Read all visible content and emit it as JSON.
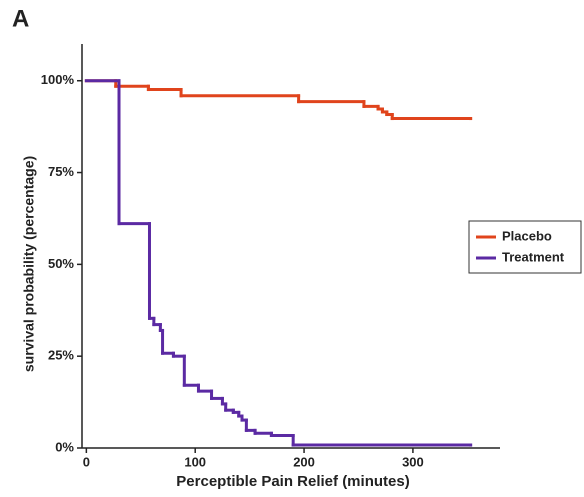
{
  "chart_data": {
    "type": "step",
    "panel_label": "A",
    "xlabel": "Perceptible Pain Relief  (minutes)",
    "ylabel": "survival probability (percentage)",
    "xlim": [
      -4,
      380
    ],
    "xticks": [
      0,
      100,
      200,
      300
    ],
    "ylim": [
      0,
      110
    ],
    "yticks": [
      {
        "value": 0,
        "label": "0%"
      },
      {
        "value": 25,
        "label": "25%"
      },
      {
        "value": 50,
        "label": "50%"
      },
      {
        "value": 75,
        "label": "75%"
      },
      {
        "value": 100,
        "label": "100%"
      }
    ],
    "legend": "right",
    "series": [
      {
        "name": "Placebo",
        "color": "#e0441c",
        "x": [
          0,
          27,
          57,
          87,
          195,
          255,
          268,
          272,
          276,
          281,
          353
        ],
        "values": [
          100,
          98.5,
          97.6,
          95.9,
          94.3,
          93,
          92.3,
          91.5,
          90.8,
          89.7,
          89.7
        ]
      },
      {
        "name": "Treatment",
        "color": "#5b2aa3",
        "x": [
          0,
          30,
          58,
          62,
          68,
          70,
          80,
          90,
          103,
          115,
          125,
          128,
          135,
          140,
          143,
          147,
          155,
          170,
          190,
          353
        ],
        "values": [
          100,
          61.1,
          35.3,
          33.6,
          32,
          25.8,
          25,
          17.1,
          15.5,
          13.5,
          12,
          10.3,
          9.7,
          8.7,
          7.6,
          4.8,
          4,
          3.4,
          0.8,
          0.8
        ]
      }
    ]
  }
}
